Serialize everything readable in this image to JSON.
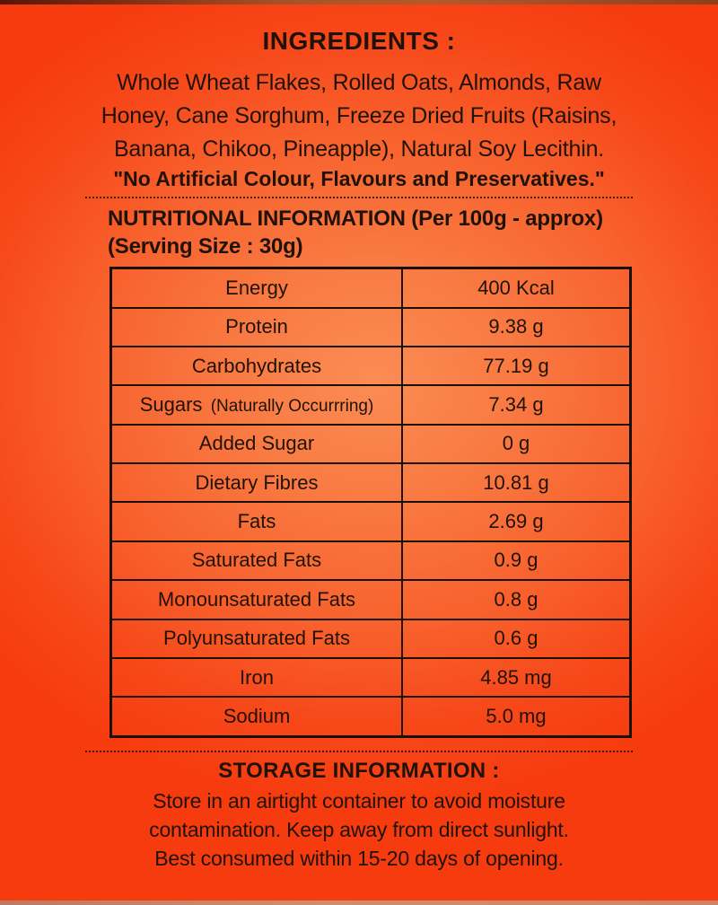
{
  "colors": {
    "background_edge": "#f63b0e",
    "background_center": "#fa8c54",
    "text": "#201208",
    "table_border": "#191008",
    "top_strip": "#7b2b12",
    "bottom_strip": "#d18c6e"
  },
  "ingredients": {
    "heading": "INGREDIENTS :",
    "lines": [
      "Whole Wheat Flakes, Rolled Oats, Almonds, Raw",
      "Honey, Cane Sorghum, Freeze Dried Fruits (Raisins,",
      "Banana, Chikoo, Pineapple), Natural Soy Lecithin."
    ],
    "claim": "\"No Artificial Colour, Flavours and Preservatives.\""
  },
  "nutrition": {
    "heading_line1": "NUTRITIONAL INFORMATION (Per 100g - approx)",
    "heading_line2": "(Serving Size : 30g)",
    "table": {
      "rows": [
        {
          "label": "Energy",
          "note": "",
          "value": "400 Kcal"
        },
        {
          "label": "Protein",
          "note": "",
          "value": "9.38 g"
        },
        {
          "label": "Carbohydrates",
          "note": "",
          "value": "77.19 g"
        },
        {
          "label": "Sugars",
          "note": "(Naturally Occurrring)",
          "value": "7.34 g"
        },
        {
          "label": "Added Sugar",
          "note": "",
          "value": "0 g"
        },
        {
          "label": "Dietary Fibres",
          "note": "",
          "value": "10.81 g"
        },
        {
          "label": "Fats",
          "note": "",
          "value": "2.69 g"
        },
        {
          "label": "Saturated Fats",
          "note": "",
          "value": "0.9 g"
        },
        {
          "label": "Monounsaturated Fats",
          "note": "",
          "value": "0.8 g"
        },
        {
          "label": "Polyunsaturated Fats",
          "note": "",
          "value": "0.6 g"
        },
        {
          "label": "Iron",
          "note": "",
          "value": "4.85 mg"
        },
        {
          "label": "Sodium",
          "note": "",
          "value": "5.0 mg"
        }
      ]
    }
  },
  "storage": {
    "heading": "STORAGE INFORMATION :",
    "lines": [
      "Store in an airtight container to avoid moisture",
      "contamination. Keep away from direct sunlight.",
      "Best consumed within 15-20 days of opening."
    ]
  }
}
